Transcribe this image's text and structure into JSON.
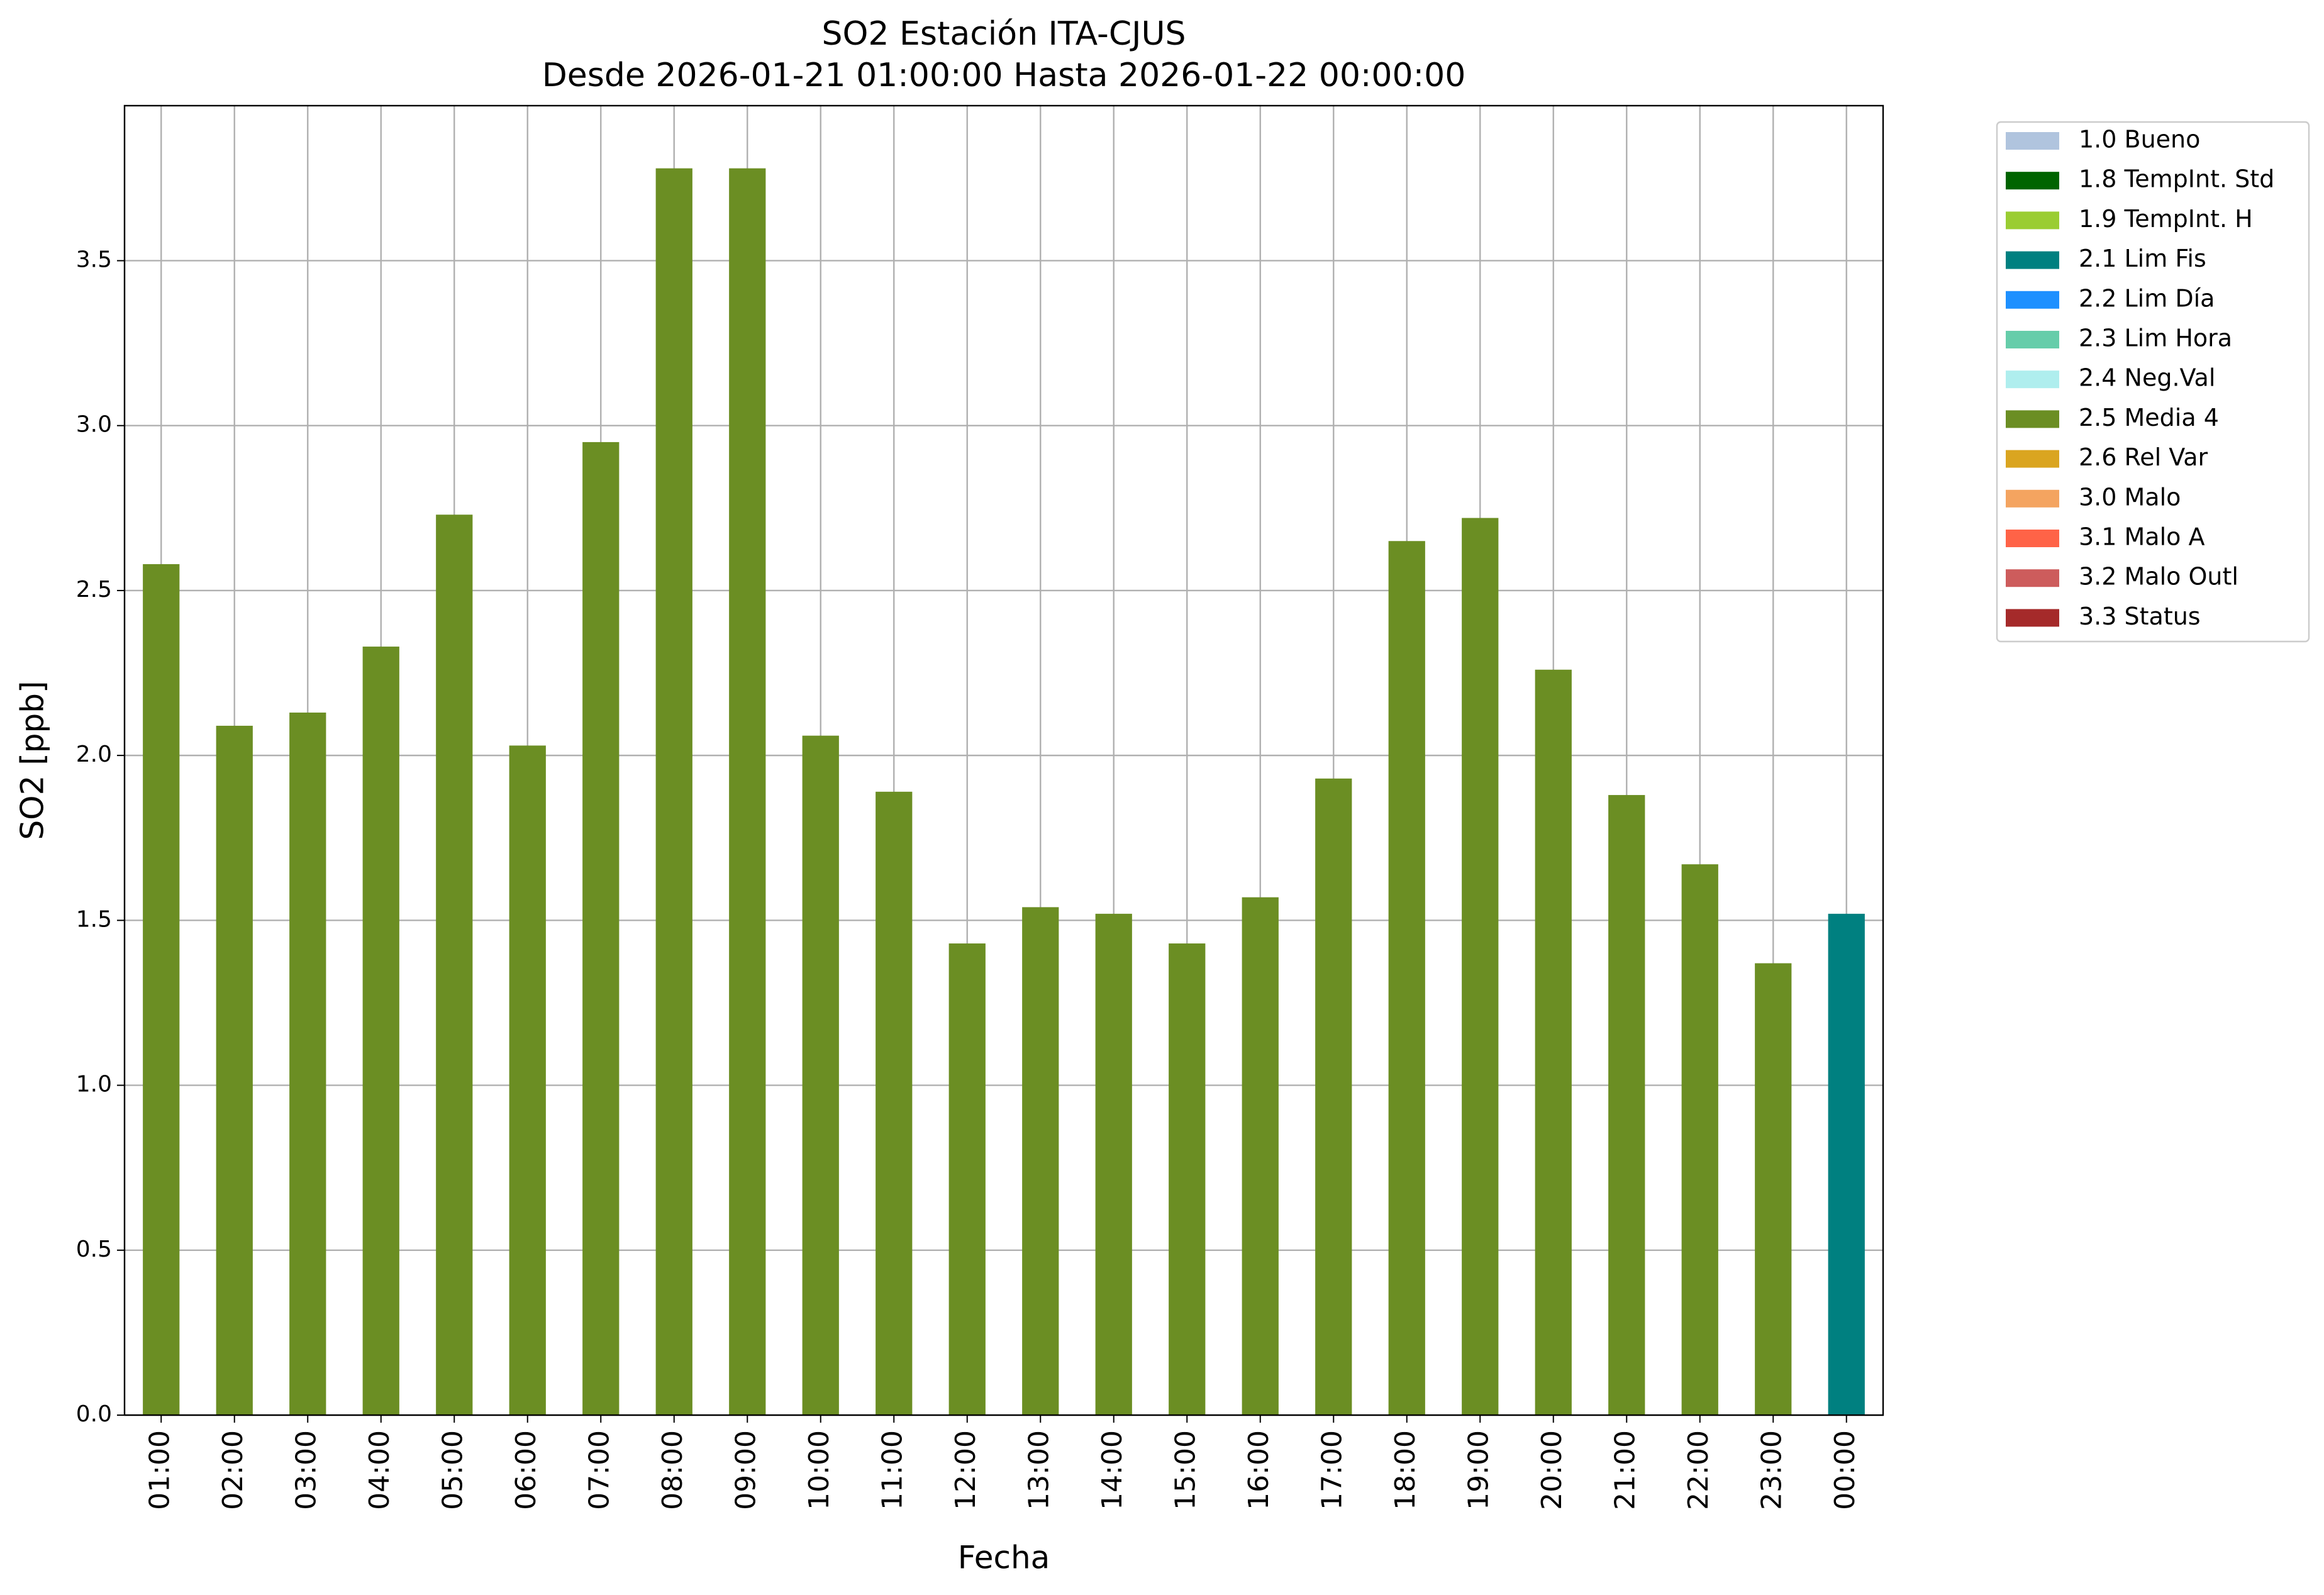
{
  "chart_data": {
    "type": "bar",
    "stacked": true,
    "title": "SO2 Estación ITA-CJUS",
    "subtitle": "Desde 2026-01-21 01:00:00 Hasta 2026-01-22 00:00:00",
    "x_label": "Fecha",
    "y_label": "SO2 [ppb]",
    "categories": [
      "01:00",
      "02:00",
      "03:00",
      "04:00",
      "05:00",
      "06:00",
      "07:00",
      "08:00",
      "09:00",
      "10:00",
      "11:00",
      "12:00",
      "13:00",
      "14:00",
      "15:00",
      "16:00",
      "17:00",
      "18:00",
      "19:00",
      "20:00",
      "21:00",
      "22:00",
      "23:00",
      "00:00"
    ],
    "series": [
      {
        "name": "1.0 Bueno",
        "color": "#b0c4de",
        "values": [
          null,
          null,
          null,
          null,
          null,
          null,
          null,
          null,
          null,
          null,
          null,
          null,
          null,
          null,
          null,
          null,
          null,
          null,
          null,
          null,
          null,
          null,
          null,
          null
        ]
      },
      {
        "name": "1.8 TempInt. Std",
        "color": "#006400",
        "values": [
          null,
          null,
          null,
          null,
          null,
          null,
          null,
          null,
          null,
          null,
          null,
          null,
          null,
          null,
          null,
          null,
          null,
          null,
          null,
          null,
          null,
          null,
          null,
          null
        ]
      },
      {
        "name": "1.9 TempInt. H",
        "color": "#9acd32",
        "values": [
          null,
          null,
          null,
          null,
          null,
          null,
          null,
          null,
          null,
          null,
          null,
          null,
          null,
          null,
          null,
          null,
          null,
          null,
          null,
          null,
          null,
          null,
          null,
          null
        ]
      },
      {
        "name": "2.1 Lim Fis",
        "color": "#008080",
        "values": [
          null,
          null,
          null,
          null,
          null,
          null,
          null,
          null,
          null,
          null,
          null,
          null,
          null,
          null,
          null,
          null,
          null,
          null,
          null,
          null,
          null,
          null,
          null,
          1.52
        ]
      },
      {
        "name": "2.2 Lim Día",
        "color": "#1e90ff",
        "values": [
          null,
          null,
          null,
          null,
          null,
          null,
          null,
          null,
          null,
          null,
          null,
          null,
          null,
          null,
          null,
          null,
          null,
          null,
          null,
          null,
          null,
          null,
          null,
          null
        ]
      },
      {
        "name": "2.3 Lim Hora",
        "color": "#66cdaa",
        "values": [
          null,
          null,
          null,
          null,
          null,
          null,
          null,
          null,
          null,
          null,
          null,
          null,
          null,
          null,
          null,
          null,
          null,
          null,
          null,
          null,
          null,
          null,
          null,
          null
        ]
      },
      {
        "name": "2.4 Neg.Val",
        "color": "#afeeee",
        "values": [
          null,
          null,
          null,
          null,
          null,
          null,
          null,
          null,
          null,
          null,
          null,
          null,
          null,
          null,
          null,
          null,
          null,
          null,
          null,
          null,
          null,
          null,
          null,
          null
        ]
      },
      {
        "name": "2.5 Media 4",
        "color": "#6b8e23",
        "values": [
          2.58,
          2.09,
          2.13,
          2.33,
          2.73,
          2.03,
          2.95,
          3.78,
          3.78,
          2.06,
          1.89,
          1.43,
          1.54,
          1.52,
          1.43,
          1.57,
          1.93,
          2.65,
          2.72,
          2.26,
          1.88,
          1.67,
          1.37,
          null
        ]
      },
      {
        "name": "2.6 Rel Var",
        "color": "#daa520",
        "values": [
          null,
          null,
          null,
          null,
          null,
          null,
          null,
          null,
          null,
          null,
          null,
          null,
          null,
          null,
          null,
          null,
          null,
          null,
          null,
          null,
          null,
          null,
          null,
          null
        ]
      },
      {
        "name": "3.0 Malo",
        "color": "#f4a460",
        "values": [
          null,
          null,
          null,
          null,
          null,
          null,
          null,
          null,
          null,
          null,
          null,
          null,
          null,
          null,
          null,
          null,
          null,
          null,
          null,
          null,
          null,
          null,
          null,
          null
        ]
      },
      {
        "name": "3.1 Malo A",
        "color": "#ff6347",
        "values": [
          null,
          null,
          null,
          null,
          null,
          null,
          null,
          null,
          null,
          null,
          null,
          null,
          null,
          null,
          null,
          null,
          null,
          null,
          null,
          null,
          null,
          null,
          null,
          null
        ]
      },
      {
        "name": "3.2 Malo Outl",
        "color": "#cd5c5c",
        "values": [
          null,
          null,
          null,
          null,
          null,
          null,
          null,
          null,
          null,
          null,
          null,
          null,
          null,
          null,
          null,
          null,
          null,
          null,
          null,
          null,
          null,
          null,
          null,
          null
        ]
      },
      {
        "name": "3.3 Status",
        "color": "#a52a2a",
        "values": [
          null,
          null,
          null,
          null,
          null,
          null,
          null,
          null,
          null,
          null,
          null,
          null,
          null,
          null,
          null,
          null,
          null,
          null,
          null,
          null,
          null,
          null,
          null,
          null
        ]
      }
    ],
    "ylim": [
      0,
      3.97
    ],
    "yticks": [
      {
        "value": 0,
        "label": "0.0"
      },
      0.5,
      {
        "value": 1,
        "label": "1.0"
      },
      1.5,
      {
        "value": 2,
        "label": "2.0"
      },
      2.5,
      {
        "value": 3,
        "label": "3.0"
      },
      3.5
    ],
    "grid": true,
    "legend": "outside-upper-right"
  }
}
